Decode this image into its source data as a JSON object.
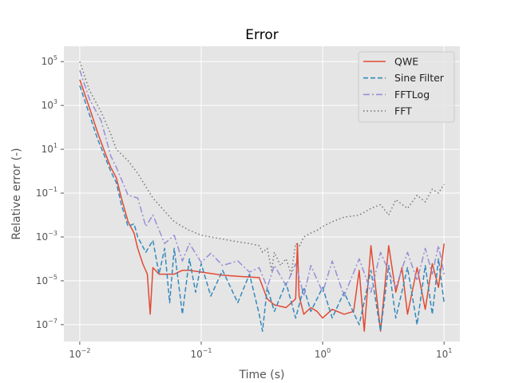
{
  "chart_data": {
    "type": "line",
    "title": "Error",
    "xlabel": "Time (s)",
    "ylabel": "Relative error (-)",
    "x_scale": "log",
    "y_scale": "log",
    "xlim": [
      0.0074,
      13.5
    ],
    "ylim": [
      1.7e-08,
      500000
    ],
    "grid": true,
    "legend_position": "top-right",
    "x_ticks": [
      {
        "value": 0.01,
        "base": "10",
        "exp": "−2"
      },
      {
        "value": 0.1,
        "base": "10",
        "exp": "−1"
      },
      {
        "value": 1,
        "base": "10",
        "exp": "0"
      },
      {
        "value": 10,
        "base": "10",
        "exp": "1"
      }
    ],
    "y_ticks": [
      {
        "value": 1e-07,
        "base": "10",
        "exp": "−7"
      },
      {
        "value": 1e-05,
        "base": "10",
        "exp": "−5"
      },
      {
        "value": 0.001,
        "base": "10",
        "exp": "−3"
      },
      {
        "value": 0.1,
        "base": "10",
        "exp": "−1"
      },
      {
        "value": 10,
        "base": "10",
        "exp": "1"
      },
      {
        "value": 1000,
        "base": "10",
        "exp": "3"
      },
      {
        "value": 100000,
        "base": "10",
        "exp": "5"
      }
    ],
    "series": [
      {
        "name": "QWE",
        "color": "#E24A33",
        "dash": "solid",
        "x": [
          0.01,
          0.012,
          0.014,
          0.016,
          0.018,
          0.02,
          0.022,
          0.025,
          0.028,
          0.03,
          0.033,
          0.036,
          0.038,
          0.04,
          0.045,
          0.05,
          0.06,
          0.07,
          0.08,
          0.1,
          0.15,
          0.2,
          0.3,
          0.35,
          0.4,
          0.5,
          0.6,
          0.62,
          0.64,
          0.7,
          0.8,
          0.9,
          1.0,
          1.2,
          1.5,
          1.8,
          2.0,
          2.2,
          2.5,
          3.0,
          3.5,
          4.0,
          4.5,
          5.0,
          6.0,
          7.0,
          8.0,
          9.0,
          10.0
        ],
        "y": [
          15000,
          800,
          60,
          8,
          1.5,
          0.5,
          0.06,
          0.005,
          0.0015,
          0.0003,
          6e-05,
          2e-05,
          3e-07,
          4e-05,
          2e-05,
          2e-05,
          2e-05,
          3e-05,
          3e-05,
          2.5e-05,
          1.8e-05,
          1.6e-05,
          1.4e-05,
          1.5e-06,
          8e-07,
          6e-07,
          1.5e-06,
          0.0005,
          2e-06,
          3e-07,
          6e-07,
          4e-07,
          2e-07,
          5e-07,
          3e-07,
          4e-07,
          3e-05,
          5e-08,
          0.0004,
          5e-08,
          0.0004,
          3e-06,
          4e-05,
          3e-07,
          4e-05,
          5e-07,
          6e-05,
          5e-06,
          0.0005
        ]
      },
      {
        "name": "Sine Filter",
        "color": "#348ABD",
        "dash": "dashed",
        "x": [
          0.01,
          0.012,
          0.014,
          0.016,
          0.018,
          0.02,
          0.022,
          0.025,
          0.028,
          0.03,
          0.035,
          0.04,
          0.045,
          0.05,
          0.055,
          0.06,
          0.07,
          0.08,
          0.09,
          0.1,
          0.12,
          0.15,
          0.2,
          0.25,
          0.3,
          0.32,
          0.35,
          0.4,
          0.5,
          0.6,
          0.7,
          0.8,
          1.0,
          1.2,
          1.5,
          2.0,
          2.5,
          3.0,
          3.5,
          4.0,
          5.0,
          6.0,
          7.0,
          8.0,
          9.0,
          10.0
        ],
        "y": [
          8000,
          400,
          30,
          5,
          1.0,
          0.3,
          0.03,
          0.003,
          0.004,
          0.001,
          0.0002,
          0.0007,
          2e-05,
          0.0003,
          1e-06,
          0.0003,
          3e-07,
          0.0001,
          3e-06,
          6e-05,
          2e-06,
          3e-05,
          1e-06,
          2e-05,
          3e-07,
          5e-08,
          5e-06,
          4e-07,
          8e-06,
          2e-07,
          5e-06,
          4e-07,
          5e-06,
          2e-07,
          3e-06,
          1e-07,
          3e-05,
          5e-08,
          5e-05,
          2e-07,
          4e-05,
          1e-07,
          5e-05,
          3e-07,
          0.0001,
          1e-06
        ]
      },
      {
        "name": "FFTLog",
        "color": "#988ED5",
        "dash": "dashdot",
        "x": [
          0.01,
          0.012,
          0.015,
          0.018,
          0.02,
          0.025,
          0.03,
          0.035,
          0.04,
          0.05,
          0.06,
          0.07,
          0.08,
          0.1,
          0.12,
          0.15,
          0.2,
          0.25,
          0.3,
          0.35,
          0.4,
          0.5,
          0.6,
          0.7,
          0.8,
          1.0,
          1.2,
          1.5,
          2.0,
          2.5,
          3.0,
          4.0,
          5.0,
          6.0,
          7.0,
          8.0,
          9.0,
          10.0
        ],
        "y": [
          40000,
          2000,
          200,
          5,
          1.5,
          0.08,
          0.06,
          0.003,
          0.01,
          0.0005,
          0.0012,
          8e-05,
          0.0005,
          7e-05,
          0.00018,
          5e-05,
          8e-05,
          2.5e-05,
          4e-05,
          5e-06,
          5e-05,
          6e-06,
          6e-05,
          2e-06,
          5e-05,
          3e-06,
          8e-05,
          2e-06,
          0.0001,
          3e-06,
          0.0002,
          5e-06,
          0.0002,
          1e-05,
          0.0003,
          2e-05,
          0.0004,
          2e-05
        ]
      },
      {
        "name": "FFT",
        "color": "#777777",
        "dash": "dotted",
        "x": [
          0.01,
          0.012,
          0.015,
          0.018,
          0.02,
          0.025,
          0.03,
          0.035,
          0.04,
          0.05,
          0.06,
          0.07,
          0.08,
          0.1,
          0.12,
          0.15,
          0.2,
          0.25,
          0.3,
          0.32,
          0.35,
          0.38,
          0.4,
          0.45,
          0.5,
          0.55,
          0.6,
          0.65,
          0.7,
          0.8,
          0.9,
          1.0,
          1.2,
          1.5,
          2.0,
          2.5,
          3.0,
          3.5,
          4.0,
          5.0,
          6.0,
          7.0,
          8.0,
          9.0,
          10.0
        ],
        "y": [
          100000,
          5000,
          500,
          50,
          10,
          3,
          0.8,
          0.2,
          0.06,
          0.015,
          0.005,
          0.003,
          0.002,
          0.0012,
          0.001,
          0.0008,
          0.0006,
          0.0005,
          0.0004,
          0.0002,
          0.0003,
          3e-05,
          0.0002,
          5e-05,
          0.0001,
          2e-05,
          0.0005,
          0.0004,
          0.001,
          0.0015,
          0.002,
          0.003,
          0.005,
          0.008,
          0.01,
          0.02,
          0.03,
          0.01,
          0.05,
          0.02,
          0.08,
          0.04,
          0.15,
          0.1,
          0.25
        ]
      }
    ]
  }
}
